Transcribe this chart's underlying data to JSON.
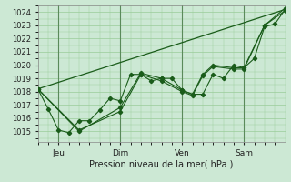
{
  "xlabel": "Pression niveau de la mer( hPa )",
  "bg_color": "#cce8d4",
  "grid_color": "#99cc99",
  "line_color": "#1a5c1a",
  "ylim": [
    1014.2,
    1024.5
  ],
  "xlim": [
    0,
    120
  ],
  "yticks": [
    1015,
    1016,
    1017,
    1018,
    1019,
    1020,
    1021,
    1022,
    1023,
    1024
  ],
  "xtick_positions": [
    10,
    40,
    70,
    100
  ],
  "xtick_labels": [
    "Jeu",
    "Dim",
    "Ven",
    "Sam"
  ],
  "vline_positions": [
    10,
    40,
    70,
    100
  ],
  "series": [
    {
      "x": [
        0,
        5,
        10,
        15,
        20,
        25,
        30,
        35,
        40,
        45,
        50,
        55,
        60,
        65,
        70,
        75,
        80,
        85,
        90,
        95,
        100,
        105,
        110,
        115,
        120
      ],
      "y": [
        1018.2,
        1016.7,
        1015.1,
        1014.9,
        1015.8,
        1015.8,
        1016.6,
        1017.5,
        1017.3,
        1019.3,
        1019.3,
        1018.8,
        1019.0,
        1019.0,
        1018.1,
        1017.8,
        1017.8,
        1019.3,
        1019.0,
        1020.0,
        1019.8,
        1020.5,
        1022.9,
        1023.1,
        1024.2
      ],
      "marker": true
    },
    {
      "x": [
        0,
        20,
        40,
        50,
        60,
        70,
        75,
        80,
        85,
        95,
        100,
        110,
        120
      ],
      "y": [
        1018.2,
        1015.1,
        1016.5,
        1019.3,
        1018.8,
        1018.0,
        1017.7,
        1019.2,
        1019.9,
        1019.7,
        1019.7,
        1023.0,
        1024.3
      ],
      "marker": true
    },
    {
      "x": [
        0,
        20,
        40,
        50,
        60,
        70,
        75,
        80,
        85,
        95,
        100,
        110,
        120
      ],
      "y": [
        1018.2,
        1015.0,
        1016.8,
        1019.4,
        1019.0,
        1018.1,
        1017.8,
        1019.3,
        1020.0,
        1019.8,
        1019.8,
        1023.0,
        1024.1
      ],
      "marker": true
    },
    {
      "x": [
        0,
        120
      ],
      "y": [
        1018.2,
        1024.2
      ],
      "marker": false
    }
  ]
}
